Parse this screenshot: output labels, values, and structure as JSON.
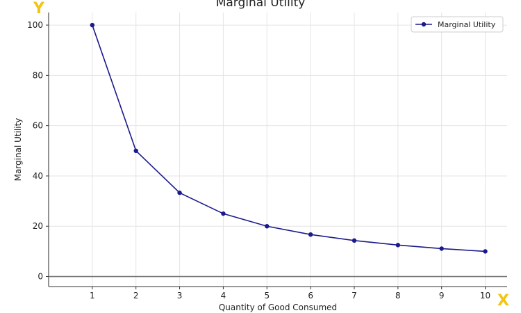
{
  "chart_data": {
    "type": "line",
    "title": "Marginal Utility",
    "xlabel": "Quantity of Good Consumed",
    "ylabel": "Marginal Utility",
    "x": [
      1,
      2,
      3,
      4,
      5,
      6,
      7,
      8,
      9,
      10
    ],
    "series": [
      {
        "name": "Marginal Utility",
        "values": [
          100,
          50,
          33.3,
          25,
          20,
          16.7,
          14.3,
          12.5,
          11.1,
          10
        ],
        "color": "#1a1a8c"
      }
    ],
    "xticks": [
      "1",
      "2",
      "3",
      "4",
      "5",
      "6",
      "7",
      "8",
      "9",
      "10"
    ],
    "yticks": [
      "0",
      "20",
      "40",
      "60",
      "80",
      "100"
    ],
    "ytick_values": [
      0,
      20,
      40,
      60,
      80,
      100
    ],
    "xlim": [
      0,
      10.5
    ],
    "ylim": [
      -4,
      105
    ],
    "grid": true,
    "legend_position": "top-right",
    "corner_labels": {
      "y": "Y",
      "x": "X"
    },
    "corner_label_color": "#f2c514"
  }
}
